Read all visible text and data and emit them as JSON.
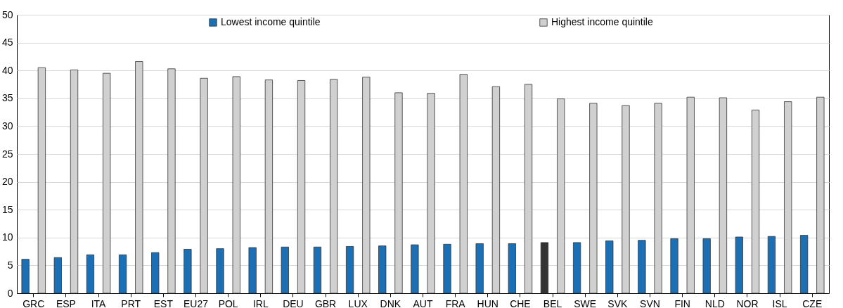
{
  "chart_data": {
    "type": "bar",
    "categories": [
      "GRC",
      "ESP",
      "ITA",
      "PRT",
      "EST",
      "EU27",
      "POL",
      "IRL",
      "DEU",
      "GBR",
      "LUX",
      "DNK",
      "AUT",
      "FRA",
      "HUN",
      "CHE",
      "BEL",
      "SWE",
      "SVK",
      "SVN",
      "FIN",
      "NLD",
      "NOR",
      "ISL",
      "CZE"
    ],
    "series": [
      {
        "name": "Lowest income quintile",
        "color": "#1a6fb5",
        "colors": [
          "#1a6fb5",
          "#1a6fb5",
          "#1a6fb5",
          "#1a6fb5",
          "#1a6fb5",
          "#1a6fb5",
          "#1a6fb5",
          "#1a6fb5",
          "#1a6fb5",
          "#1a6fb5",
          "#1a6fb5",
          "#1a6fb5",
          "#1a6fb5",
          "#1a6fb5",
          "#1a6fb5",
          "#1a6fb5",
          "#333333",
          "#1a6fb5",
          "#1a6fb5",
          "#1a6fb5",
          "#1a6fb5",
          "#1a6fb5",
          "#1a6fb5",
          "#1a6fb5",
          "#1a6fb5"
        ],
        "values": [
          6.1,
          6.4,
          6.9,
          6.9,
          7.3,
          7.9,
          8.0,
          8.2,
          8.3,
          8.3,
          8.4,
          8.5,
          8.7,
          8.8,
          8.9,
          8.9,
          9.1,
          9.1,
          9.4,
          9.5,
          9.8,
          9.8,
          10.1,
          10.2,
          10.4
        ]
      },
      {
        "name": "Highest income quintile",
        "color": "#d0d0d0",
        "values": [
          40.5,
          40.1,
          39.5,
          41.6,
          40.3,
          38.6,
          38.9,
          38.3,
          38.2,
          38.4,
          38.8,
          36.0,
          35.9,
          39.3,
          37.1,
          37.5,
          34.9,
          34.1,
          33.7,
          34.1,
          35.2,
          35.1,
          32.9,
          34.4,
          35.2
        ]
      }
    ],
    "ylim": [
      0,
      50
    ],
    "yticks": [
      0,
      5,
      10,
      15,
      20,
      25,
      30,
      35,
      40,
      45,
      50
    ],
    "grid": "y",
    "legend": "top"
  }
}
